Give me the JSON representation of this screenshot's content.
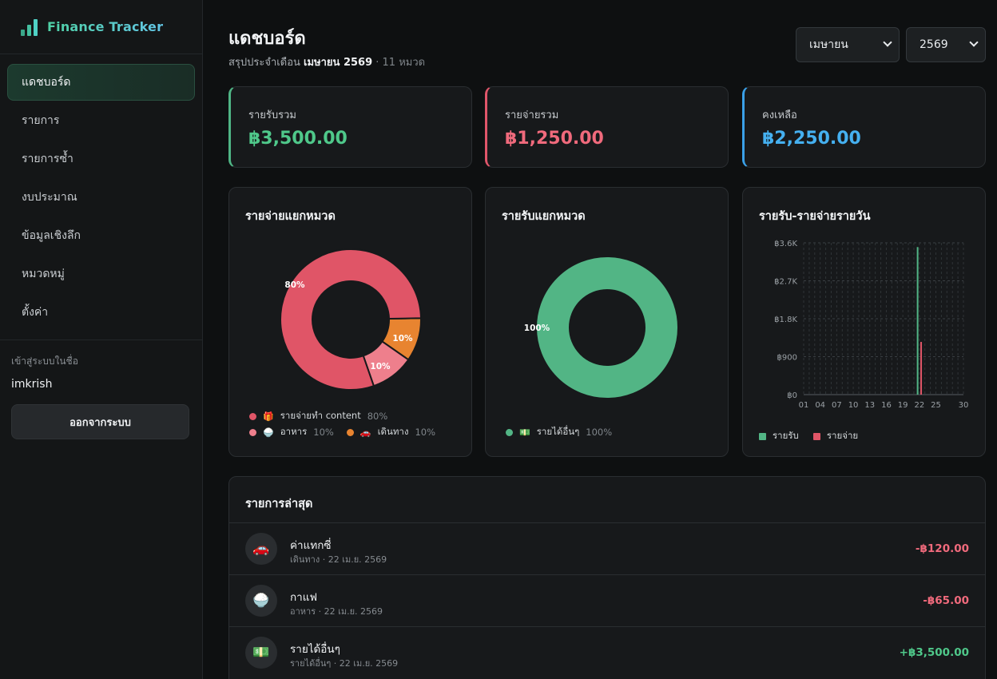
{
  "app": {
    "name": "Finance Tracker"
  },
  "sidebar": {
    "items": [
      {
        "label": "แดชบอร์ด",
        "active": true
      },
      {
        "label": "รายการ"
      },
      {
        "label": "รายการซ้ำ"
      },
      {
        "label": "งบประมาณ"
      },
      {
        "label": "ข้อมูลเชิงลึก"
      },
      {
        "label": "หมวดหมู่"
      },
      {
        "label": "ตั้งค่า"
      }
    ],
    "login_label": "เข้าสู่ระบบในชื่อ",
    "username": "imkrish",
    "logout_label": "ออกจากระบบ"
  },
  "header": {
    "title": "แดชบอร์ด",
    "subtitle_prefix": "สรุปประจำเดือน",
    "subtitle_period": "เมษายน 2569",
    "subtitle_count": "· 11 หมวด",
    "month_select": "เมษายน",
    "year_select": "2569"
  },
  "stats": {
    "income": {
      "label": "รายรับรวม",
      "value": "฿3,500.00",
      "color": "#4fc88a"
    },
    "expense": {
      "label": "รายจ่ายรวม",
      "value": "฿1,250.00",
      "color": "#f06a7c"
    },
    "balance": {
      "label": "คงเหลือ",
      "value": "฿2,250.00",
      "color": "#45b0f0"
    }
  },
  "expense_panel": {
    "title": "รายจ่ายแยกหมวด",
    "legend": [
      {
        "emoji": "🎁",
        "label": "รายจ่ายทำ content",
        "pct": "80%",
        "color": "#e05567"
      },
      {
        "emoji": "🍚",
        "label": "อาหาร",
        "pct": "10%",
        "color": "#ee7f8c"
      },
      {
        "emoji": "🚗",
        "label": "เดินทาง",
        "pct": "10%",
        "color": "#e88430"
      }
    ]
  },
  "income_panel": {
    "title": "รายรับแยกหมวด",
    "legend": [
      {
        "emoji": "💵",
        "label": "รายได้อื่นๆ",
        "pct": "100%",
        "color": "#52b585"
      }
    ]
  },
  "daily_panel": {
    "title": "รายรับ-รายจ่ายรายวัน",
    "legend_income": "รายรับ",
    "legend_expense": "รายจ่าย",
    "income_color": "#52b585",
    "expense_color": "#e05567"
  },
  "chart_data": [
    {
      "type": "pie",
      "categories": [
        "รายจ่ายทำ content",
        "อาหาร",
        "เดินทาง"
      ],
      "values": [
        80,
        10,
        10
      ],
      "labels": [
        "80%",
        "10%",
        "10%"
      ],
      "colors": [
        "#e05567",
        "#ee7f8c",
        "#e88430"
      ]
    },
    {
      "type": "pie",
      "categories": [
        "รายได้อื่นๆ"
      ],
      "values": [
        100
      ],
      "labels": [
        "100%"
      ],
      "colors": [
        "#52b585"
      ]
    },
    {
      "type": "bar",
      "x_ticks": [
        "01",
        "04",
        "07",
        "10",
        "13",
        "16",
        "19",
        "22",
        "25",
        "30"
      ],
      "y_ticks": [
        "฿0",
        "฿900",
        "฿1.8K",
        "฿2.7K",
        "฿3.6K"
      ],
      "ylim": [
        0,
        3600
      ],
      "xlim": [
        1,
        30
      ],
      "grid": true,
      "series": [
        {
          "name": "รายรับ",
          "points": [
            {
              "day": 22,
              "value": 3500
            }
          ]
        },
        {
          "name": "รายจ่าย",
          "points": [
            {
              "day": 22,
              "value": 1250
            }
          ]
        }
      ]
    }
  ],
  "recent": {
    "title": "รายการล่าสุด",
    "items": [
      {
        "emoji": "🚗",
        "name": "ค่าแทกซี่",
        "meta": "เดินทาง · 22 เม.ย. 2569",
        "amount": "-฿120.00",
        "sign": "neg"
      },
      {
        "emoji": "🍚",
        "name": "กาแฟ",
        "meta": "อาหาร · 22 เม.ย. 2569",
        "amount": "-฿65.00",
        "sign": "neg"
      },
      {
        "emoji": "💵",
        "name": "รายได้อื่นๆ",
        "meta": "รายได้อื่นๆ · 22 เม.ย. 2569",
        "amount": "+฿3,500.00",
        "sign": "pos"
      }
    ]
  }
}
